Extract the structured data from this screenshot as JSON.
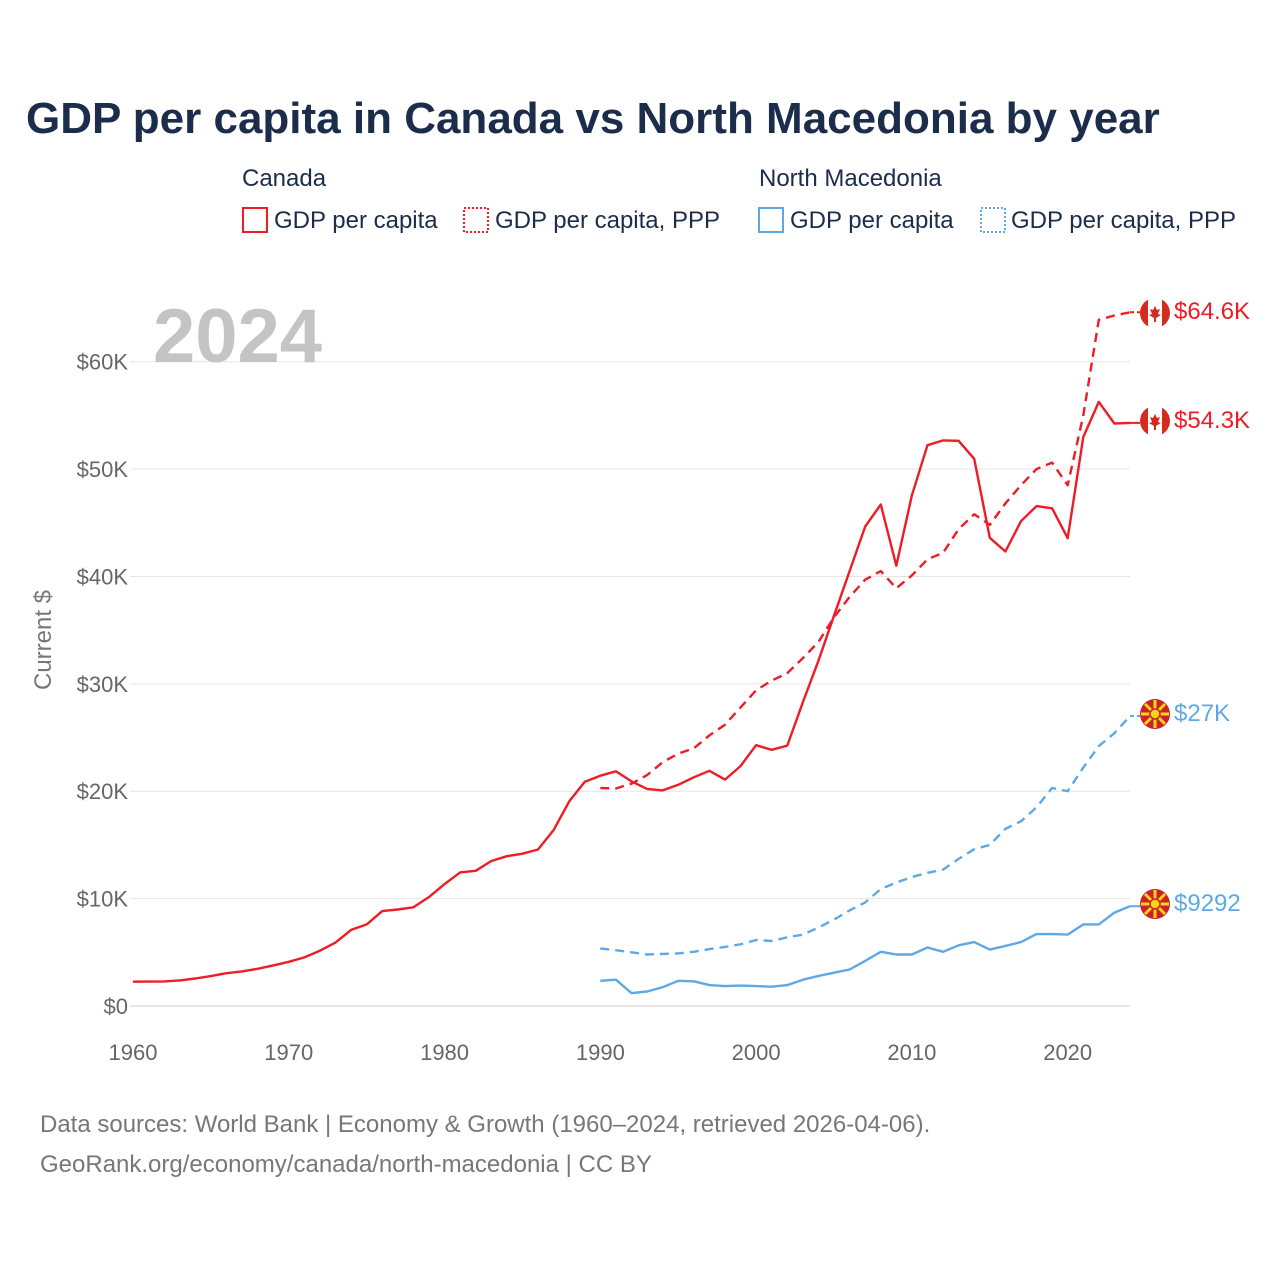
{
  "colors": {
    "canada": "#ee1c25",
    "north_macedonia": "#5fa8e6",
    "title": "#1b2d4a",
    "grid": "#e6e6e6",
    "axis_text": "#666666",
    "year_watermark": "#c4c4c4"
  },
  "chart_data": {
    "type": "line",
    "title": "GDP per capita in Canada vs North Macedonia by year",
    "xlabel": "",
    "ylabel": "Current $",
    "xlim": [
      1960,
      2024
    ],
    "ylim": [
      0,
      65000
    ],
    "x_ticks": [
      1960,
      1970,
      1980,
      1990,
      2000,
      2010,
      2020
    ],
    "x_tick_labels": [
      "1960",
      "1970",
      "1980",
      "1990",
      "2000",
      "2010",
      "2020"
    ],
    "y_ticks": [
      0,
      10000,
      20000,
      30000,
      40000,
      50000,
      60000
    ],
    "y_tick_labels": [
      "$0",
      "$10K",
      "$20K",
      "$30K",
      "$40K",
      "$50K",
      "$60K"
    ],
    "current_year": "2024",
    "legend": {
      "groups": [
        {
          "title": "Canada",
          "items": [
            "GDP per capita",
            "GDP per capita, PPP"
          ]
        },
        {
          "title": "North Macedonia",
          "items": [
            "GDP per capita",
            "GDP per capita, PPP"
          ]
        }
      ]
    },
    "series": [
      {
        "name": "Canada GDP per capita",
        "country": "canada",
        "style": "solid",
        "end_label": "$54.3K",
        "x": [
          1960,
          1961,
          1962,
          1963,
          1964,
          1965,
          1966,
          1967,
          1968,
          1969,
          1970,
          1971,
          1972,
          1973,
          1974,
          1975,
          1976,
          1977,
          1978,
          1979,
          1980,
          1981,
          1982,
          1983,
          1984,
          1985,
          1986,
          1987,
          1988,
          1989,
          1990,
          1991,
          1992,
          1993,
          1994,
          1995,
          1996,
          1997,
          1998,
          1999,
          2000,
          2001,
          2002,
          2003,
          2004,
          2005,
          2006,
          2007,
          2008,
          2009,
          2010,
          2011,
          2012,
          2013,
          2014,
          2015,
          2016,
          2017,
          2018,
          2019,
          2020,
          2021,
          2022,
          2023,
          2024
        ],
        "values": [
          2260,
          2270,
          2290,
          2380,
          2560,
          2780,
          3050,
          3220,
          3460,
          3780,
          4120,
          4530,
          5150,
          5900,
          7090,
          7600,
          8840,
          8990,
          9190,
          10150,
          11350,
          12440,
          12590,
          13500,
          13950,
          14180,
          14570,
          16380,
          19050,
          20880,
          21450,
          21860,
          20920,
          20220,
          20080,
          20600,
          21300,
          21900,
          21080,
          22340,
          24290,
          23860,
          24250,
          28300,
          32150,
          36350,
          40500,
          44650,
          46700,
          41000,
          47560,
          52220,
          52670,
          52630,
          50960,
          43600,
          42320,
          45150,
          46550,
          46350,
          43560,
          52990,
          56260,
          54240,
          54300
        ]
      },
      {
        "name": "Canada GDP per capita, PPP",
        "country": "canada",
        "style": "dashed",
        "end_label": "$64.6K",
        "x": [
          1990,
          1991,
          1992,
          1993,
          1994,
          1995,
          1996,
          1997,
          1998,
          1999,
          2000,
          2001,
          2002,
          2003,
          2004,
          2005,
          2006,
          2007,
          2008,
          2009,
          2010,
          2011,
          2012,
          2013,
          2014,
          2015,
          2016,
          2017,
          2018,
          2019,
          2020,
          2021,
          2022,
          2023,
          2024
        ],
        "values": [
          20300,
          20250,
          20700,
          21500,
          22700,
          23500,
          24000,
          25200,
          26200,
          27800,
          29400,
          30300,
          31000,
          32400,
          33900,
          36200,
          38100,
          39700,
          40500,
          38900,
          40100,
          41600,
          42200,
          44400,
          45800,
          44800,
          46800,
          48500,
          50000,
          50600,
          48500,
          55000,
          63900,
          64300,
          64600
        ]
      },
      {
        "name": "North Macedonia GDP per capita",
        "country": "north_macedonia",
        "style": "solid",
        "end_label": "$9292",
        "x": [
          1990,
          1991,
          1992,
          1993,
          1994,
          1995,
          1996,
          1997,
          1998,
          1999,
          2000,
          2001,
          2002,
          2003,
          2004,
          2005,
          2006,
          2007,
          2008,
          2009,
          2010,
          2011,
          2012,
          2013,
          2014,
          2015,
          2016,
          2017,
          2018,
          2019,
          2020,
          2021,
          2022,
          2023,
          2024
        ],
        "values": [
          2350,
          2450,
          1200,
          1350,
          1750,
          2350,
          2300,
          1950,
          1850,
          1900,
          1850,
          1800,
          1950,
          2450,
          2800,
          3100,
          3400,
          4200,
          5050,
          4800,
          4800,
          5450,
          5050,
          5650,
          5950,
          5250,
          5600,
          5950,
          6700,
          6700,
          6650,
          7600,
          7600,
          8700,
          9292
        ]
      },
      {
        "name": "North Macedonia GDP per capita, PPP",
        "country": "north_macedonia",
        "style": "dashed",
        "end_label": "$27K",
        "x": [
          1990,
          1991,
          1992,
          1993,
          1994,
          1995,
          1996,
          1997,
          1998,
          1999,
          2000,
          2001,
          2002,
          2003,
          2004,
          2005,
          2006,
          2007,
          2008,
          2009,
          2010,
          2011,
          2012,
          2013,
          2014,
          2015,
          2016,
          2017,
          2018,
          2019,
          2020,
          2021,
          2022,
          2023,
          2024
        ],
        "values": [
          5350,
          5200,
          5000,
          4800,
          4850,
          4900,
          5050,
          5300,
          5500,
          5750,
          6150,
          6050,
          6400,
          6650,
          7300,
          8050,
          8900,
          9650,
          10900,
          11500,
          12000,
          12400,
          12700,
          13700,
          14600,
          15000,
          16500,
          17200,
          18500,
          20300,
          20000,
          22200,
          24200,
          25400,
          27000
        ]
      }
    ]
  },
  "footer": {
    "source_line": "Data sources: World Bank | Economy & Growth (1960–2024, retrieved 2026-04-06).",
    "url_line": "GeoRank.org/economy/canada/north-macedonia | CC BY"
  }
}
